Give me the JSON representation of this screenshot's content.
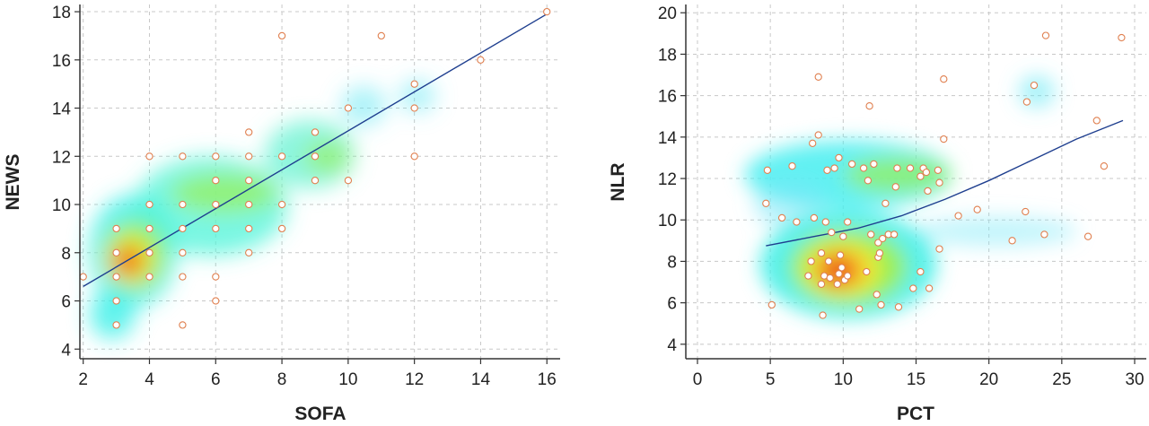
{
  "chart_data": [
    {
      "type": "scatter",
      "xlabel": "SOFA",
      "ylabel": "NEWS",
      "xlim": [
        1.9,
        16.4
      ],
      "ylim": [
        3.6,
        18.3
      ],
      "xticks": [
        2,
        4,
        6,
        8,
        10,
        12,
        14,
        16
      ],
      "yticks": [
        4,
        6,
        8,
        10,
        12,
        14,
        16,
        18
      ],
      "grid": true,
      "trend_line": {
        "type": "linear",
        "points": [
          [
            2,
            6.6
          ],
          [
            16,
            17.9
          ]
        ],
        "color": "#1f3f8f"
      },
      "density_overlay": true,
      "density_hotspot": [
        3.2,
        7.7
      ],
      "points": [
        [
          2,
          7
        ],
        [
          3,
          5
        ],
        [
          3,
          6
        ],
        [
          3,
          7
        ],
        [
          3,
          8
        ],
        [
          3,
          9
        ],
        [
          4,
          7
        ],
        [
          4,
          8
        ],
        [
          4,
          9
        ],
        [
          4,
          10
        ],
        [
          4,
          12
        ],
        [
          5,
          5
        ],
        [
          5,
          7
        ],
        [
          5,
          8
        ],
        [
          5,
          9
        ],
        [
          5,
          10
        ],
        [
          5,
          12
        ],
        [
          6,
          6
        ],
        [
          6,
          7
        ],
        [
          6,
          9
        ],
        [
          6,
          10
        ],
        [
          6,
          11
        ],
        [
          6,
          12
        ],
        [
          7,
          8
        ],
        [
          7,
          9
        ],
        [
          7,
          10
        ],
        [
          7,
          11
        ],
        [
          7,
          12
        ],
        [
          7,
          13
        ],
        [
          8,
          9
        ],
        [
          8,
          10
        ],
        [
          8,
          12
        ],
        [
          8,
          17
        ],
        [
          9,
          11
        ],
        [
          9,
          12
        ],
        [
          9,
          13
        ],
        [
          10,
          11
        ],
        [
          10,
          14
        ],
        [
          11,
          17
        ],
        [
          12,
          12
        ],
        [
          12,
          14
        ],
        [
          12,
          15
        ],
        [
          14,
          16
        ],
        [
          16,
          18
        ]
      ],
      "colors": {
        "hollow_point": "#e8a070",
        "filled_point": "#ffffff",
        "point_stroke": "#e08050"
      }
    },
    {
      "type": "scatter",
      "xlabel": "PCT",
      "ylabel": "NLR",
      "xlim": [
        -0.8,
        30.8
      ],
      "ylim": [
        3.3,
        20.4
      ],
      "xticks": [
        0,
        5,
        10,
        15,
        20,
        25,
        30
      ],
      "yticks": [
        4,
        6,
        8,
        10,
        12,
        14,
        16,
        18,
        20
      ],
      "grid": true,
      "trend_line": {
        "type": "curve",
        "points": [
          [
            4.7,
            8.75
          ],
          [
            8,
            9.2
          ],
          [
            11,
            9.6
          ],
          [
            14,
            10.2
          ],
          [
            17,
            11.0
          ],
          [
            20,
            11.9
          ],
          [
            23,
            12.9
          ],
          [
            26,
            13.9
          ],
          [
            29.2,
            14.8
          ]
        ],
        "color": "#1f3f8f"
      },
      "density_overlay": true,
      "density_hotspot": [
        9.3,
        7.8
      ],
      "points": [
        [
          4.7,
          10.8
        ],
        [
          4.8,
          12.4
        ],
        [
          5.1,
          5.9
        ],
        [
          5.8,
          10.1
        ],
        [
          6.5,
          12.6
        ],
        [
          6.8,
          9.9
        ],
        [
          7.6,
          7.3
        ],
        [
          7.8,
          8.0
        ],
        [
          7.9,
          13.7
        ],
        [
          8.0,
          10.1
        ],
        [
          8.3,
          14.1
        ],
        [
          8.3,
          16.9
        ],
        [
          8.5,
          6.9
        ],
        [
          8.5,
          8.4
        ],
        [
          8.6,
          5.4
        ],
        [
          8.7,
          7.3
        ],
        [
          8.8,
          9.9
        ],
        [
          8.9,
          12.4
        ],
        [
          9.0,
          8.0
        ],
        [
          9.1,
          7.2
        ],
        [
          9.2,
          9.4
        ],
        [
          9.4,
          12.5
        ],
        [
          9.6,
          6.9
        ],
        [
          9.7,
          7.4
        ],
        [
          9.7,
          13.0
        ],
        [
          9.8,
          8.3
        ],
        [
          9.9,
          7.7
        ],
        [
          10.0,
          9.2
        ],
        [
          10.1,
          7.1
        ],
        [
          10.3,
          7.3
        ],
        [
          10.3,
          9.9
        ],
        [
          10.6,
          12.7
        ],
        [
          11.1,
          5.7
        ],
        [
          11.4,
          12.5
        ],
        [
          11.6,
          7.5
        ],
        [
          11.7,
          11.9
        ],
        [
          11.8,
          15.5
        ],
        [
          11.9,
          9.3
        ],
        [
          12.1,
          12.7
        ],
        [
          12.3,
          6.4
        ],
        [
          12.4,
          8.2
        ],
        [
          12.4,
          8.9
        ],
        [
          12.5,
          8.4
        ],
        [
          12.6,
          5.9
        ],
        [
          12.7,
          9.1
        ],
        [
          12.9,
          10.8
        ],
        [
          13.1,
          9.3
        ],
        [
          13.5,
          9.3
        ],
        [
          13.6,
          11.6
        ],
        [
          13.7,
          12.5
        ],
        [
          13.8,
          5.8
        ],
        [
          14.6,
          12.5
        ],
        [
          14.8,
          6.7
        ],
        [
          15.3,
          12.1
        ],
        [
          15.3,
          7.5
        ],
        [
          15.5,
          12.5
        ],
        [
          15.7,
          12.3
        ],
        [
          15.8,
          11.4
        ],
        [
          15.9,
          6.7
        ],
        [
          16.5,
          12.4
        ],
        [
          16.6,
          11.8
        ],
        [
          16.6,
          8.6
        ],
        [
          16.9,
          13.9
        ],
        [
          16.9,
          16.8
        ],
        [
          17.9,
          10.2
        ],
        [
          19.2,
          10.5
        ],
        [
          21.6,
          9.0
        ],
        [
          22.5,
          10.4
        ],
        [
          22.6,
          15.7
        ],
        [
          23.1,
          16.5
        ],
        [
          23.8,
          9.3
        ],
        [
          23.9,
          18.9
        ],
        [
          26.8,
          9.2
        ],
        [
          27.4,
          14.8
        ],
        [
          27.9,
          12.6
        ],
        [
          29.1,
          18.8
        ]
      ],
      "colors": {
        "hollow_point": "#e8a070",
        "filled_point": "#ffffff",
        "point_stroke": "#e08050"
      }
    }
  ]
}
